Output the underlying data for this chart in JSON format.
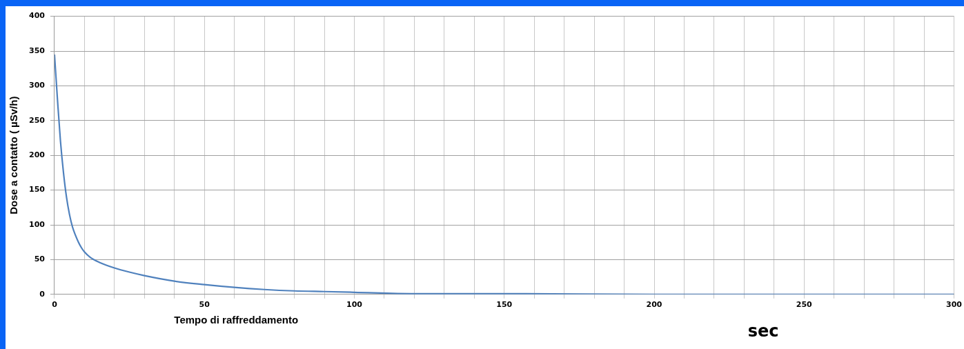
{
  "chart_data": {
    "type": "line",
    "xlabel": "Tempo di raffreddamento",
    "ylabel": "Dose a contatto ( µSv/h)",
    "annotations": [
      "sec"
    ],
    "x": [
      0,
      1,
      2,
      3,
      4,
      5,
      6,
      7,
      8,
      9,
      10,
      12,
      15,
      20,
      25,
      30,
      40,
      50,
      60,
      70,
      80,
      90,
      100,
      120,
      150,
      200,
      250,
      300
    ],
    "series": [
      {
        "color": "#4f81bd",
        "values": [
          345,
          280,
          220,
          175,
          140,
          115,
          97,
          85,
          75,
          67,
          61,
          53,
          46,
          38,
          32,
          27,
          19,
          14,
          10,
          7,
          5,
          4,
          3,
          1,
          1,
          0,
          0,
          0
        ]
      }
    ],
    "xlim": [
      0,
      300
    ],
    "xticks": [
      0,
      {
        "value": 10,
        "label": null
      },
      {
        "value": 20,
        "label": null
      },
      {
        "value": 30,
        "label": null
      },
      {
        "value": 40,
        "label": null
      },
      50,
      {
        "value": 60,
        "label": null
      },
      {
        "value": 70,
        "label": null
      },
      {
        "value": 80,
        "label": null
      },
      {
        "value": 90,
        "label": null
      },
      100,
      {
        "value": 110,
        "label": null
      },
      {
        "value": 120,
        "label": null
      },
      {
        "value": 130,
        "label": null
      },
      {
        "value": 140,
        "label": null
      },
      150,
      {
        "value": 160,
        "label": null
      },
      {
        "value": 170,
        "label": null
      },
      {
        "value": 180,
        "label": null
      },
      {
        "value": 190,
        "label": null
      },
      200,
      {
        "value": 210,
        "label": null
      },
      {
        "value": 220,
        "label": null
      },
      {
        "value": 230,
        "label": null
      },
      {
        "value": 240,
        "label": null
      },
      250,
      {
        "value": 260,
        "label": null
      },
      {
        "value": 270,
        "label": null
      },
      {
        "value": 280,
        "label": null
      },
      {
        "value": 290,
        "label": null
      },
      300
    ],
    "ylim": [
      0,
      400
    ],
    "yticks": [
      0,
      50,
      100,
      150,
      200,
      250,
      300,
      350,
      400
    ],
    "grid": true,
    "legend": false,
    "marker": "none",
    "line_style": "solid"
  }
}
